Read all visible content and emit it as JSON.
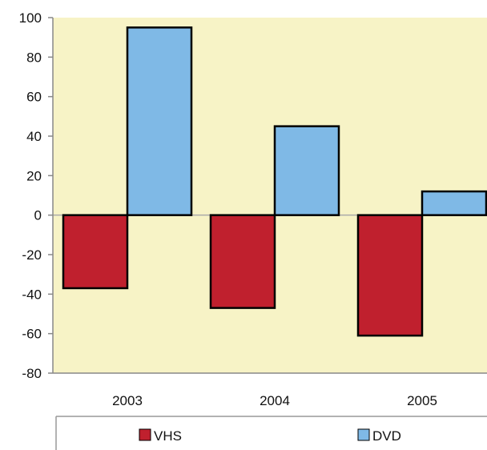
{
  "chart_data": {
    "type": "bar",
    "categories": [
      "2003",
      "2004",
      "2005"
    ],
    "series": [
      {
        "name": "VHS",
        "values": [
          -37,
          -47,
          -61
        ],
        "color": "#c0202e"
      },
      {
        "name": "DVD",
        "values": [
          95,
          45,
          12
        ],
        "color": "#7fb9e6"
      }
    ],
    "ylim": [
      -80,
      100
    ],
    "yticks": [
      "100",
      "80",
      "60",
      "40",
      "20",
      "0",
      "-20",
      "-40",
      "-60",
      "-80"
    ],
    "grid": false,
    "legend": "bottom",
    "plot_background": "#f7f3c6"
  }
}
